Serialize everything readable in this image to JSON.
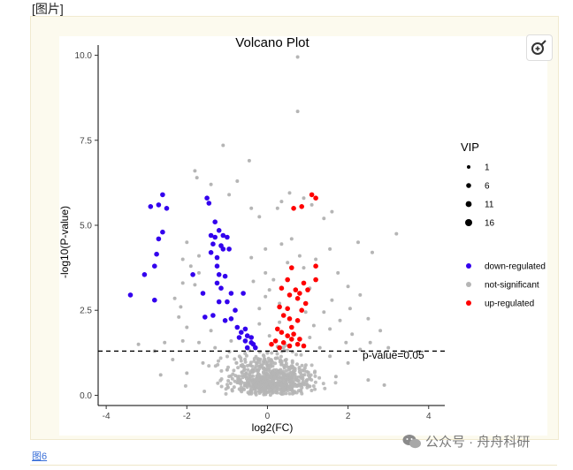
{
  "top_caption": "[图片]",
  "figure_caption": "图6",
  "watermark": "公众号 · 舟舟科研",
  "chart_data": {
    "type": "scatter",
    "title": "Volcano Plot",
    "xlabel": "log2(FC)",
    "ylabel": "-log10(P-value)",
    "xlim": [
      -4.2,
      4.4
    ],
    "ylim": [
      -0.3,
      10.3
    ],
    "xticks": [
      -4,
      -2,
      0,
      2,
      4
    ],
    "yticks": [
      0.0,
      2.5,
      5.0,
      7.5,
      10.0
    ],
    "ytick_labels": [
      "0.0",
      "2.5",
      "5.0",
      "7.5",
      "10.0"
    ],
    "threshold": {
      "y": 1.3,
      "label": "p-value=0.05"
    },
    "size_legend": {
      "title": "VIP",
      "levels": [
        1,
        6,
        11,
        16
      ]
    },
    "series": [
      {
        "name": "down-regulated",
        "color": "#3300ee",
        "points": [
          [
            -2.6,
            5.9
          ],
          [
            -2.7,
            5.6
          ],
          [
            -2.5,
            5.5
          ],
          [
            -2.9,
            5.55
          ],
          [
            -2.6,
            4.8
          ],
          [
            -2.7,
            4.6
          ],
          [
            -2.75,
            4.15
          ],
          [
            -2.8,
            3.8
          ],
          [
            -3.4,
            2.95
          ],
          [
            -3.05,
            3.55
          ],
          [
            -2.8,
            2.8
          ],
          [
            -1.5,
            5.8
          ],
          [
            -1.45,
            5.65
          ],
          [
            -1.3,
            5.1
          ],
          [
            -1.2,
            4.85
          ],
          [
            -1.4,
            4.7
          ],
          [
            -1.3,
            4.65
          ],
          [
            -1.1,
            4.7
          ],
          [
            -1.0,
            4.65
          ],
          [
            -1.35,
            4.45
          ],
          [
            -1.15,
            4.4
          ],
          [
            -1.1,
            4.3
          ],
          [
            -1.4,
            4.2
          ],
          [
            -1.25,
            4.05
          ],
          [
            -0.95,
            4.3
          ],
          [
            -1.25,
            3.8
          ],
          [
            -1.2,
            3.55
          ],
          [
            -1.05,
            3.5
          ],
          [
            -1.25,
            3.3
          ],
          [
            -1.15,
            3.15
          ],
          [
            -0.6,
            3.0
          ],
          [
            -0.9,
            3.0
          ],
          [
            -1.2,
            2.75
          ],
          [
            -1.0,
            2.75
          ],
          [
            -0.8,
            2.5
          ],
          [
            -1.85,
            3.55
          ],
          [
            -1.6,
            3.0
          ],
          [
            -1.55,
            2.3
          ],
          [
            -1.35,
            2.35
          ],
          [
            -1.05,
            2.2
          ],
          [
            -0.75,
            2.0
          ],
          [
            -0.55,
            1.95
          ],
          [
            -0.65,
            1.85
          ],
          [
            -0.5,
            1.75
          ],
          [
            -0.4,
            1.7
          ],
          [
            -0.55,
            1.6
          ],
          [
            -0.4,
            1.55
          ],
          [
            -0.5,
            1.4
          ],
          [
            -0.35,
            1.5
          ],
          [
            -0.7,
            1.7
          ],
          [
            -0.9,
            2.25
          ],
          [
            -0.3,
            1.4
          ]
        ]
      },
      {
        "name": "not-significant",
        "color": "#b5b5b5",
        "points": [
          [
            0.75,
            9.95
          ],
          [
            0.75,
            8.35
          ],
          [
            -1.1,
            7.35
          ],
          [
            -0.45,
            6.9
          ],
          [
            -1.8,
            6.6
          ],
          [
            -1.75,
            6.4
          ],
          [
            -0.75,
            6.3
          ],
          [
            -1.4,
            6.2
          ],
          [
            -0.95,
            5.9
          ],
          [
            0.9,
            5.8
          ],
          [
            0.55,
            5.95
          ],
          [
            -0.4,
            5.5
          ],
          [
            -0.2,
            5.25
          ],
          [
            0.35,
            5.7
          ],
          [
            0.25,
            5.5
          ],
          [
            1.1,
            5.6
          ],
          [
            1.6,
            5.4
          ],
          [
            1.4,
            5.2
          ],
          [
            3.2,
            4.75
          ],
          [
            2.25,
            4.5
          ],
          [
            -2.0,
            4.5
          ],
          [
            1.55,
            4.3
          ],
          [
            0.6,
            4.6
          ],
          [
            0.35,
            4.45
          ],
          [
            -0.05,
            4.3
          ],
          [
            -1.7,
            4.1
          ],
          [
            -2.1,
            4.0
          ],
          [
            -0.4,
            4.05
          ],
          [
            0.8,
            4.1
          ],
          [
            1.2,
            4.0
          ],
          [
            2.6,
            4.2
          ],
          [
            -1.9,
            3.8
          ],
          [
            -1.7,
            3.6
          ],
          [
            0.5,
            3.9
          ],
          [
            0.9,
            3.75
          ],
          [
            -0.05,
            3.6
          ],
          [
            0.15,
            3.4
          ],
          [
            1.75,
            3.6
          ],
          [
            -2.1,
            3.3
          ],
          [
            -1.8,
            3.25
          ],
          [
            -0.35,
            3.35
          ],
          [
            0.05,
            3.1
          ],
          [
            1.05,
            3.15
          ],
          [
            2.0,
            3.2
          ],
          [
            2.3,
            2.95
          ],
          [
            -2.3,
            2.85
          ],
          [
            -0.05,
            2.9
          ],
          [
            0.3,
            2.7
          ],
          [
            1.6,
            2.8
          ],
          [
            2.05,
            2.55
          ],
          [
            -2.15,
            2.6
          ],
          [
            -2.2,
            2.3
          ],
          [
            -0.2,
            2.55
          ],
          [
            0.95,
            2.45
          ],
          [
            1.4,
            2.45
          ],
          [
            1.8,
            2.2
          ],
          [
            2.5,
            2.25
          ],
          [
            -2.0,
            2.0
          ],
          [
            -1.4,
            1.9
          ],
          [
            -0.2,
            2.1
          ],
          [
            0.3,
            2.15
          ],
          [
            1.15,
            2.05
          ],
          [
            1.55,
            1.95
          ],
          [
            2.1,
            1.8
          ],
          [
            2.8,
            1.9
          ],
          [
            -2.55,
            1.55
          ],
          [
            -2.1,
            1.6
          ],
          [
            -1.7,
            1.55
          ],
          [
            -0.9,
            1.6
          ],
          [
            0.05,
            1.75
          ],
          [
            1.05,
            1.7
          ],
          [
            1.95,
            1.55
          ],
          [
            2.55,
            1.55
          ],
          [
            -3.2,
            1.5
          ],
          [
            -2.8,
            1.3
          ],
          [
            -1.3,
            1.4
          ],
          [
            1.3,
            1.4
          ],
          [
            2.3,
            1.35
          ],
          [
            3.0,
            1.4
          ],
          [
            -2.0,
            0.65
          ],
          [
            -2.65,
            0.6
          ],
          [
            2.5,
            0.45
          ],
          [
            2.9,
            0.3
          ],
          [
            -2.35,
            1.05
          ],
          [
            1.55,
            1.15
          ],
          [
            2.0,
            0.95
          ],
          [
            -1.6,
            0.95
          ],
          [
            1.7,
            0.55
          ],
          [
            -1.0,
            0.75
          ]
        ]
      },
      {
        "name": "up-regulated",
        "color": "#ff0000",
        "points": [
          [
            1.1,
            5.9
          ],
          [
            1.2,
            5.8
          ],
          [
            0.85,
            5.55
          ],
          [
            0.65,
            5.5
          ],
          [
            0.6,
            3.75
          ],
          [
            1.2,
            3.8
          ],
          [
            0.5,
            3.4
          ],
          [
            0.9,
            3.3
          ],
          [
            1.2,
            3.4
          ],
          [
            0.35,
            3.15
          ],
          [
            0.7,
            3.1
          ],
          [
            0.8,
            3.0
          ],
          [
            1.0,
            3.1
          ],
          [
            0.55,
            2.95
          ],
          [
            0.75,
            2.85
          ],
          [
            0.3,
            2.6
          ],
          [
            0.5,
            2.55
          ],
          [
            0.95,
            2.7
          ],
          [
            0.4,
            2.35
          ],
          [
            0.55,
            2.25
          ],
          [
            0.75,
            2.2
          ],
          [
            0.85,
            2.5
          ],
          [
            0.6,
            2.0
          ],
          [
            0.25,
            1.95
          ],
          [
            0.35,
            1.85
          ],
          [
            0.5,
            1.75
          ],
          [
            0.65,
            1.8
          ],
          [
            0.8,
            1.65
          ],
          [
            0.2,
            1.6
          ],
          [
            0.4,
            1.55
          ],
          [
            0.55,
            1.45
          ],
          [
            0.75,
            1.5
          ],
          [
            0.1,
            1.5
          ],
          [
            0.9,
            1.45
          ],
          [
            0.3,
            1.4
          ],
          [
            0.6,
            1.65
          ]
        ]
      }
    ]
  }
}
